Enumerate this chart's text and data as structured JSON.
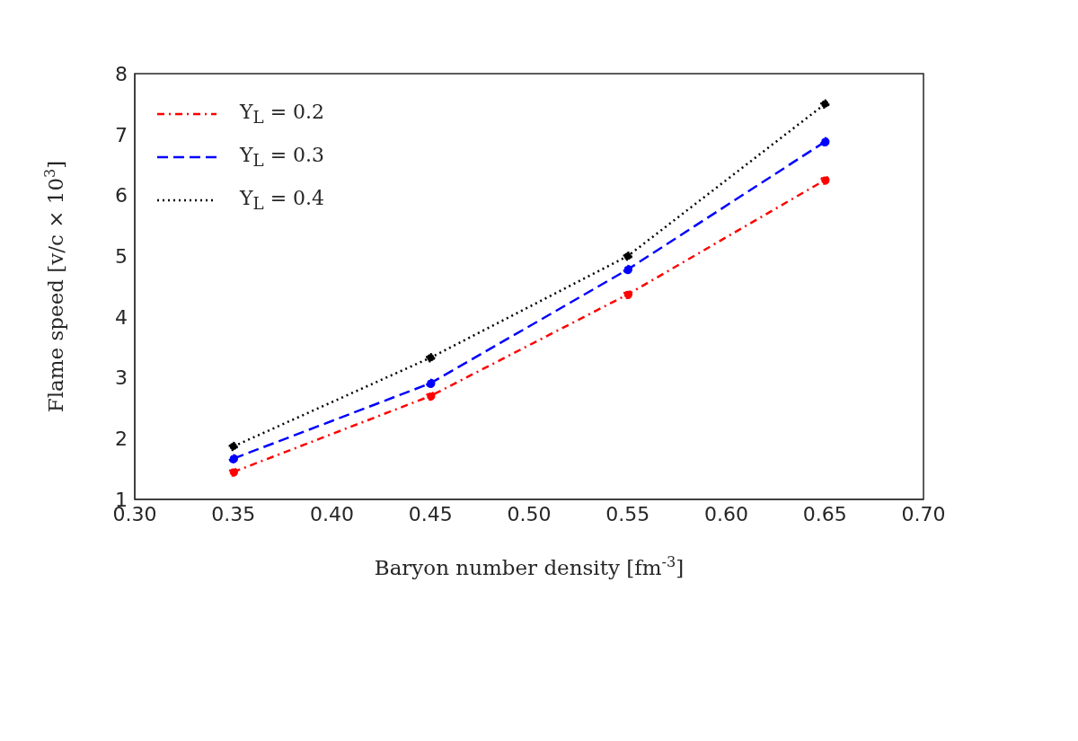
{
  "chart_data": {
    "type": "line",
    "xlabel": "Baryon number density [fm$^{-3}$]",
    "ylabel": "Flame speed [v/c × 10$^{3}$]",
    "x": [
      0.35,
      0.45,
      0.55,
      0.65
    ],
    "series": [
      {
        "name": "Y$_{L}$ = 0.2",
        "color": "#ff0000",
        "line_style": "dashdot",
        "values": [
          1.45,
          2.7,
          4.37,
          6.25
        ]
      },
      {
        "name": "Y$_{L}$ = 0.3",
        "color": "#0000ff",
        "line_style": "dashed",
        "values": [
          1.67,
          2.91,
          4.78,
          6.88
        ]
      },
      {
        "name": "Y$_{L}$ = 0.4",
        "color": "#000000",
        "line_style": "dotted",
        "values": [
          1.87,
          3.33,
          5.0,
          7.5
        ]
      }
    ],
    "xlim": [
      0.3,
      0.7
    ],
    "xticks": [
      {
        "value": 0.3,
        "label": "0.30"
      },
      {
        "value": 0.35,
        "label": "0.35"
      },
      {
        "value": 0.4,
        "label": "0.40"
      },
      {
        "value": 0.45,
        "label": "0.45"
      },
      {
        "value": 0.5,
        "label": "0.50"
      },
      {
        "value": 0.55,
        "label": "0.55"
      },
      {
        "value": 0.6,
        "label": "0.60"
      },
      {
        "value": 0.65,
        "label": "0.65"
      },
      {
        "value": 0.7,
        "label": "0.70"
      }
    ],
    "ylim": [
      1,
      8
    ],
    "yticks": [
      1,
      2,
      3,
      4,
      5,
      6,
      7,
      8
    ],
    "grid": false,
    "legend": "top left",
    "marker": "circle"
  }
}
